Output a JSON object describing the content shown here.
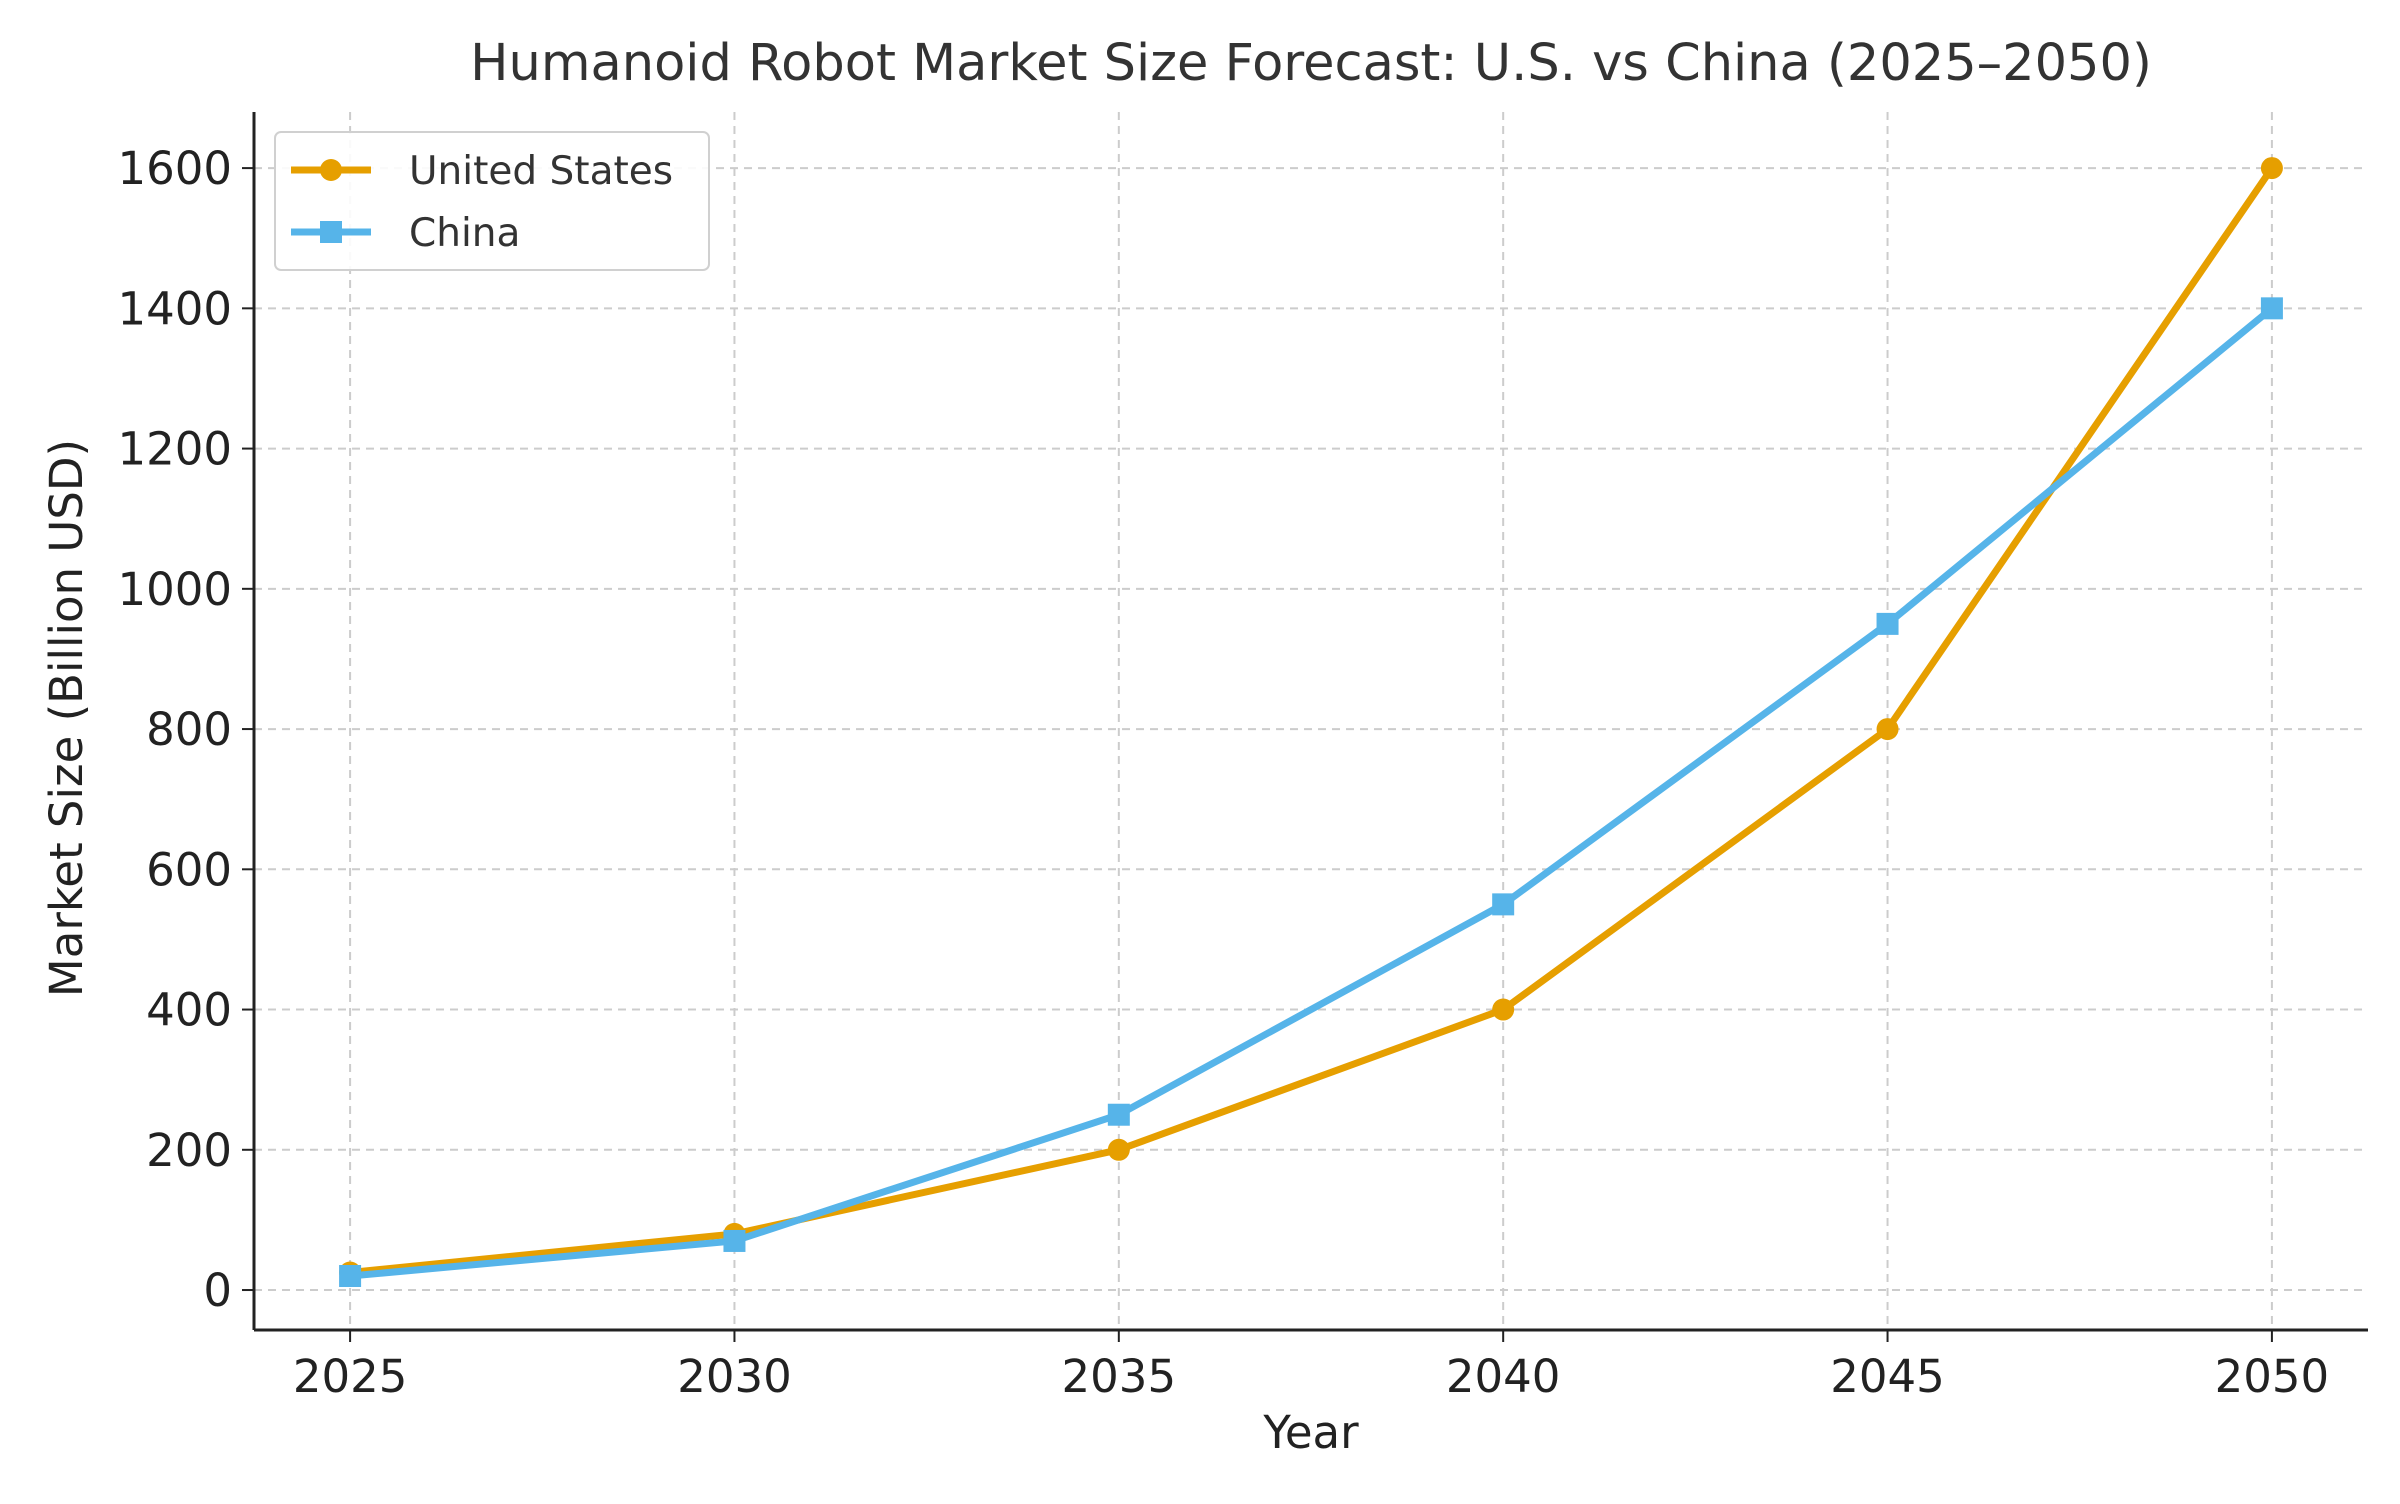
{
  "chart_data": {
    "type": "line",
    "title": "Humanoid Robot Market Size Forecast: U.S. vs China (2025–2050)",
    "xlabel": "Year",
    "ylabel": "Market Size (Billion USD)",
    "x": [
      2025,
      2030,
      2035,
      2040,
      2045,
      2050
    ],
    "x_ticks": [
      "2025",
      "2030",
      "2035",
      "2040",
      "2045",
      "2050"
    ],
    "y_ticks": [
      "0",
      "200",
      "400",
      "600",
      "800",
      "1000",
      "1200",
      "1400",
      "1600"
    ],
    "xlim": [
      2023.75,
      2051.25
    ],
    "ylim": [
      -57,
      1680
    ],
    "grid": true,
    "legend_position": "top-left",
    "series": [
      {
        "name": "United States",
        "color": "#E69F00",
        "marker": "circle",
        "values": [
          25,
          80,
          200,
          400,
          800,
          1600
        ]
      },
      {
        "name": "China",
        "color": "#56B4E9",
        "marker": "square",
        "values": [
          20,
          70,
          250,
          550,
          950,
          1400
        ]
      }
    ]
  }
}
